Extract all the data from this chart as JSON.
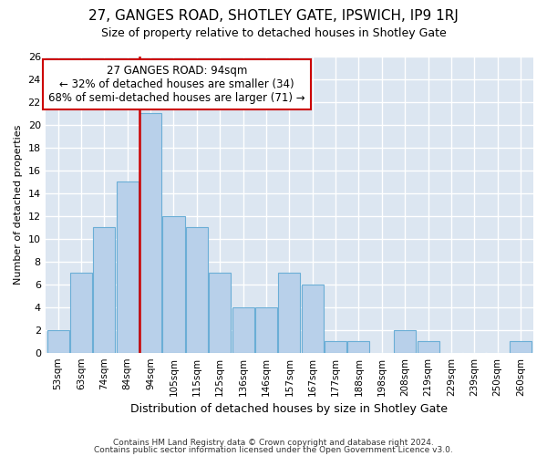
{
  "title1": "27, GANGES ROAD, SHOTLEY GATE, IPSWICH, IP9 1RJ",
  "title2": "Size of property relative to detached houses in Shotley Gate",
  "xlabel": "Distribution of detached houses by size in Shotley Gate",
  "ylabel": "Number of detached properties",
  "footnote1": "Contains HM Land Registry data © Crown copyright and database right 2024.",
  "footnote2": "Contains public sector information licensed under the Open Government Licence v3.0.",
  "annotation_line1": "    27 GANGES ROAD: 94sqm    ",
  "annotation_line2": "← 32% of detached houses are smaller (34)",
  "annotation_line3": "68% of semi-detached houses are larger (71) →",
  "bar_labels": [
    "53sqm",
    "63sqm",
    "74sqm",
    "84sqm",
    "94sqm",
    "105sqm",
    "115sqm",
    "125sqm",
    "136sqm",
    "146sqm",
    "157sqm",
    "167sqm",
    "177sqm",
    "188sqm",
    "198sqm",
    "208sqm",
    "219sqm",
    "229sqm",
    "239sqm",
    "250sqm",
    "260sqm"
  ],
  "bar_values": [
    2,
    7,
    11,
    15,
    21,
    12,
    11,
    7,
    4,
    4,
    7,
    6,
    1,
    1,
    0,
    2,
    1,
    0,
    0,
    0,
    1
  ],
  "bar_color": "#b8d0ea",
  "bar_edge_color": "#6baed6",
  "highlight_index": 4,
  "highlight_line_color": "#cc0000",
  "ylim": [
    0,
    26
  ],
  "yticks": [
    0,
    2,
    4,
    6,
    8,
    10,
    12,
    14,
    16,
    18,
    20,
    22,
    24,
    26
  ],
  "bg_color": "#dce6f1",
  "fig_bg_color": "#ffffff",
  "annotation_box_color": "#ffffff",
  "annotation_box_edge": "#cc0000",
  "grid_color": "#ffffff",
  "title1_fontsize": 11,
  "title2_fontsize": 9,
  "ylabel_fontsize": 8,
  "xlabel_fontsize": 9,
  "footnote_fontsize": 6.5
}
